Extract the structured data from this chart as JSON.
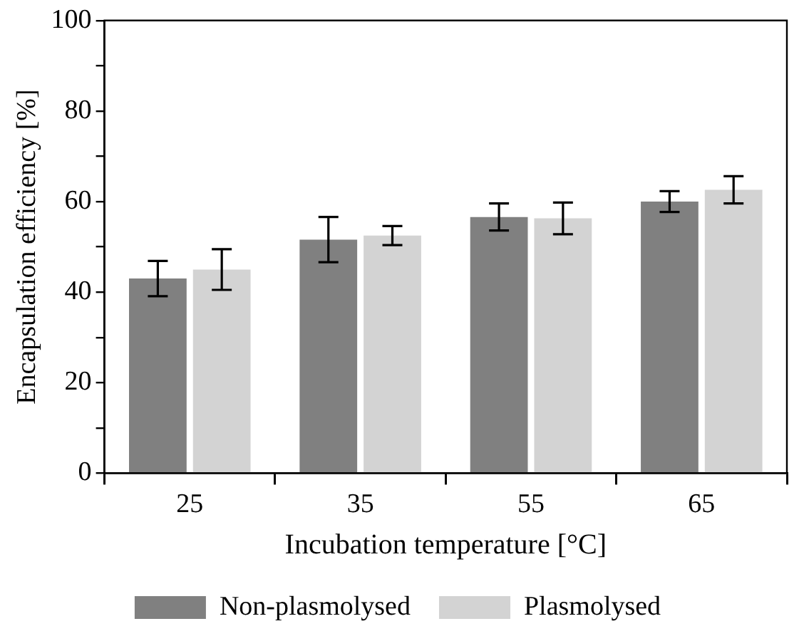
{
  "chart_data": {
    "type": "bar",
    "xlabel": "Incubation temperature [°C]",
    "ylabel": "Encapsulation efficiency [%]",
    "categories": [
      "25",
      "35",
      "55",
      "65"
    ],
    "series": [
      {
        "name": "Non-plasmolysed",
        "color": "#808080",
        "values": [
          43.0,
          51.6,
          56.6,
          60.0
        ],
        "errors": [
          3.9,
          5.0,
          3.0,
          2.3
        ]
      },
      {
        "name": "Plasmolysed",
        "color": "#d3d3d3",
        "values": [
          45.0,
          52.5,
          56.3,
          62.6
        ],
        "errors": [
          4.5,
          2.1,
          3.5,
          3.0
        ]
      }
    ],
    "ylim": [
      0,
      100
    ],
    "yticks": [
      0,
      {
        "value": 10,
        "label": null
      },
      20,
      {
        "value": 30,
        "label": null
      },
      40,
      {
        "value": 50,
        "label": null
      },
      60,
      {
        "value": 70,
        "label": null
      },
      80,
      {
        "value": 90,
        "label": null
      },
      100
    ],
    "grid": false,
    "legend": "bottom"
  }
}
